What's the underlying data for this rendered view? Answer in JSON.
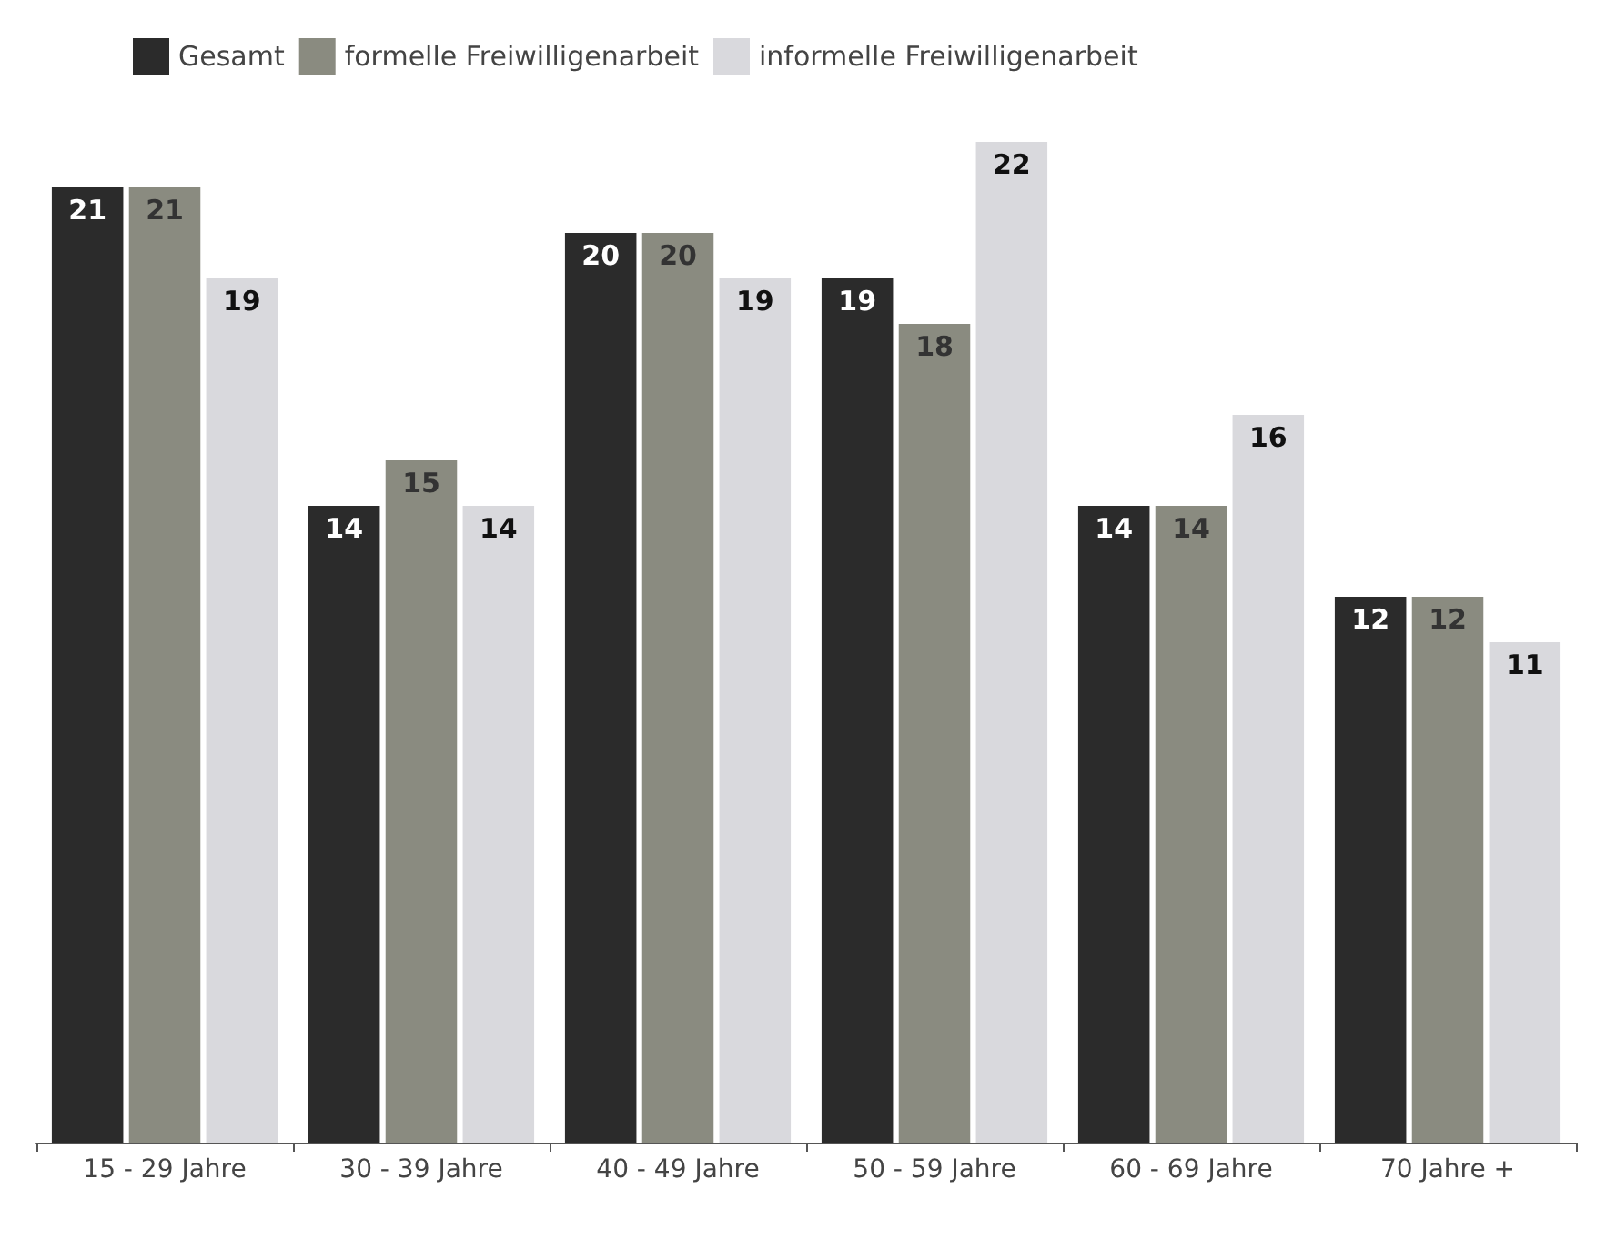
{
  "chart_data": {
    "type": "bar",
    "categories": [
      "15 - 29 Jahre",
      "30 - 39 Jahre",
      "40 - 49 Jahre",
      "50 - 59 Jahre",
      "60 - 69 Jahre",
      "70 Jahre +"
    ],
    "series": [
      {
        "name": "Gesamt",
        "color": "#2b2b2b",
        "values": [
          21,
          14,
          20,
          19,
          14,
          12
        ]
      },
      {
        "name": "formelle Freiwilligenarbeit",
        "color": "#8a8b80",
        "values": [
          21,
          15,
          20,
          18,
          14,
          12
        ]
      },
      {
        "name": "informelle Freiwilligenarbeit",
        "color": "#d9d9dd",
        "values": [
          19,
          14,
          19,
          22,
          16,
          11
        ]
      }
    ],
    "data_labels": true,
    "legend": "top left"
  }
}
